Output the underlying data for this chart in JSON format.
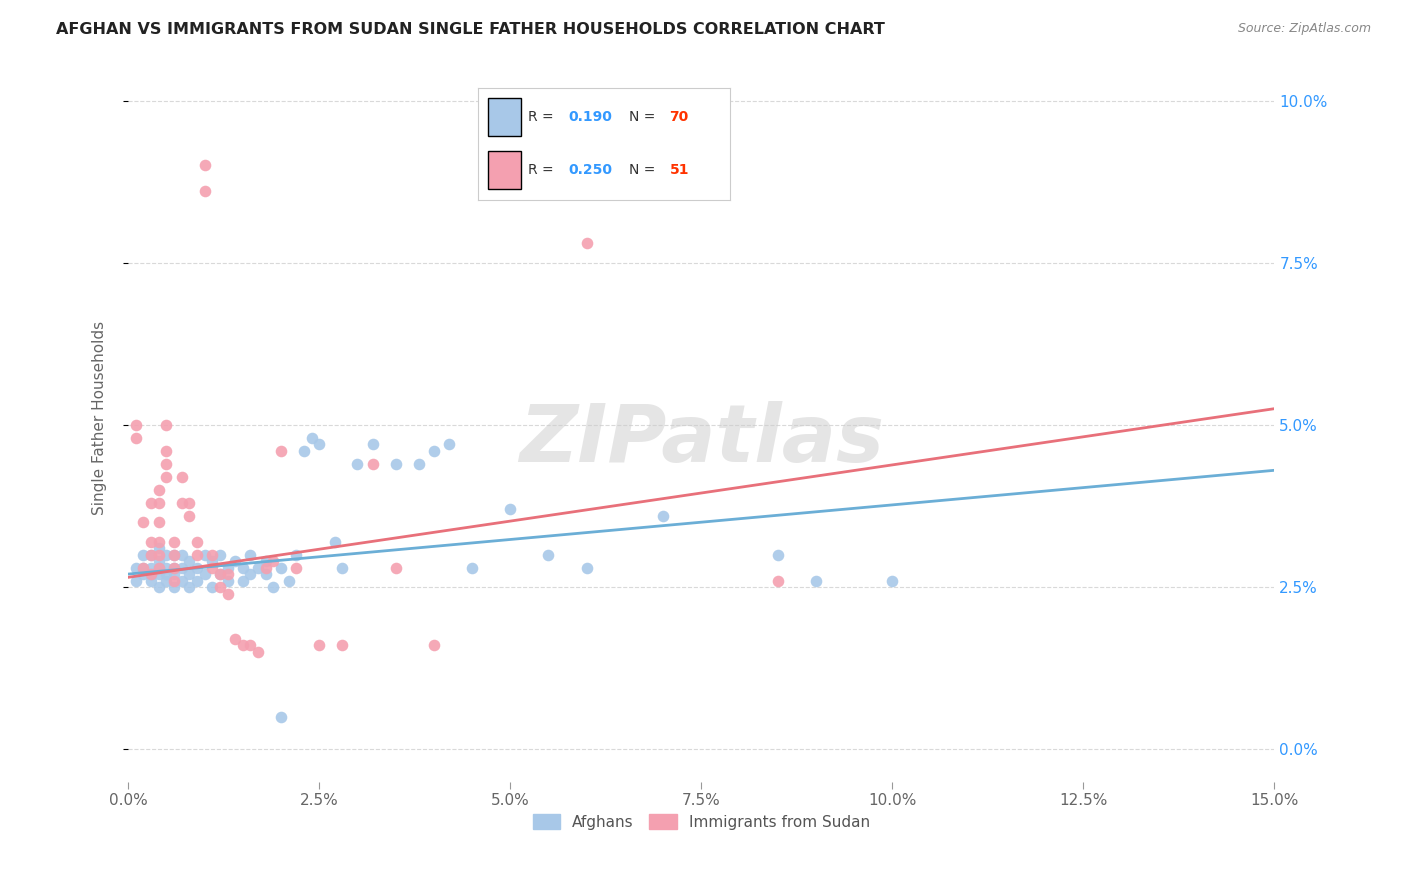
{
  "title": "AFGHAN VS IMMIGRANTS FROM SUDAN SINGLE FATHER HOUSEHOLDS CORRELATION CHART",
  "source": "Source: ZipAtlas.com",
  "ylabel": "Single Father Households",
  "xlim": [
    0.0,
    0.15
  ],
  "ylim": [
    -0.005,
    0.107
  ],
  "background_color": "#ffffff",
  "grid_color": "#d9d9d9",
  "watermark_text": "ZIPatlas",
  "legend_labels": [
    "Afghans",
    "Immigrants from Sudan"
  ],
  "blue_color": "#a8c8e8",
  "pink_color": "#f4a0b0",
  "blue_line_color": "#6baed6",
  "pink_line_color": "#e8707a",
  "r_value_color": "#3399ff",
  "n_value_color": "#ff3300",
  "blue_line_x": [
    0.0,
    0.15
  ],
  "blue_line_y": [
    0.027,
    0.043
  ],
  "pink_line_x": [
    0.0,
    0.15
  ],
  "pink_line_y": [
    0.0265,
    0.0525
  ],
  "blue_scatter": [
    [
      0.001,
      0.028
    ],
    [
      0.001,
      0.026
    ],
    [
      0.002,
      0.027
    ],
    [
      0.002,
      0.028
    ],
    [
      0.002,
      0.03
    ],
    [
      0.003,
      0.026
    ],
    [
      0.003,
      0.027
    ],
    [
      0.003,
      0.028
    ],
    [
      0.003,
      0.03
    ],
    [
      0.004,
      0.025
    ],
    [
      0.004,
      0.027
    ],
    [
      0.004,
      0.028
    ],
    [
      0.004,
      0.029
    ],
    [
      0.004,
      0.031
    ],
    [
      0.005,
      0.026
    ],
    [
      0.005,
      0.027
    ],
    [
      0.005,
      0.028
    ],
    [
      0.005,
      0.03
    ],
    [
      0.006,
      0.025
    ],
    [
      0.006,
      0.027
    ],
    [
      0.006,
      0.028
    ],
    [
      0.006,
      0.03
    ],
    [
      0.007,
      0.026
    ],
    [
      0.007,
      0.028
    ],
    [
      0.007,
      0.03
    ],
    [
      0.008,
      0.025
    ],
    [
      0.008,
      0.027
    ],
    [
      0.008,
      0.029
    ],
    [
      0.009,
      0.026
    ],
    [
      0.009,
      0.028
    ],
    [
      0.01,
      0.027
    ],
    [
      0.01,
      0.03
    ],
    [
      0.011,
      0.025
    ],
    [
      0.011,
      0.029
    ],
    [
      0.012,
      0.027
    ],
    [
      0.012,
      0.03
    ],
    [
      0.013,
      0.026
    ],
    [
      0.013,
      0.028
    ],
    [
      0.014,
      0.029
    ],
    [
      0.015,
      0.026
    ],
    [
      0.015,
      0.028
    ],
    [
      0.016,
      0.027
    ],
    [
      0.016,
      0.03
    ],
    [
      0.017,
      0.028
    ],
    [
      0.018,
      0.027
    ],
    [
      0.018,
      0.029
    ],
    [
      0.019,
      0.025
    ],
    [
      0.02,
      0.028
    ],
    [
      0.021,
      0.026
    ],
    [
      0.022,
      0.03
    ],
    [
      0.023,
      0.046
    ],
    [
      0.024,
      0.048
    ],
    [
      0.025,
      0.047
    ],
    [
      0.027,
      0.032
    ],
    [
      0.028,
      0.028
    ],
    [
      0.03,
      0.044
    ],
    [
      0.032,
      0.047
    ],
    [
      0.035,
      0.044
    ],
    [
      0.038,
      0.044
    ],
    [
      0.04,
      0.046
    ],
    [
      0.042,
      0.047
    ],
    [
      0.045,
      0.028
    ],
    [
      0.05,
      0.037
    ],
    [
      0.055,
      0.03
    ],
    [
      0.06,
      0.028
    ],
    [
      0.07,
      0.036
    ],
    [
      0.085,
      0.03
    ],
    [
      0.09,
      0.026
    ],
    [
      0.1,
      0.026
    ],
    [
      0.02,
      0.005
    ]
  ],
  "pink_scatter": [
    [
      0.001,
      0.048
    ],
    [
      0.001,
      0.05
    ],
    [
      0.002,
      0.028
    ],
    [
      0.002,
      0.035
    ],
    [
      0.003,
      0.027
    ],
    [
      0.003,
      0.03
    ],
    [
      0.003,
      0.032
    ],
    [
      0.003,
      0.038
    ],
    [
      0.004,
      0.028
    ],
    [
      0.004,
      0.03
    ],
    [
      0.004,
      0.032
    ],
    [
      0.004,
      0.035
    ],
    [
      0.004,
      0.038
    ],
    [
      0.004,
      0.04
    ],
    [
      0.005,
      0.042
    ],
    [
      0.005,
      0.044
    ],
    [
      0.005,
      0.046
    ],
    [
      0.005,
      0.05
    ],
    [
      0.006,
      0.026
    ],
    [
      0.006,
      0.028
    ],
    [
      0.006,
      0.03
    ],
    [
      0.006,
      0.032
    ],
    [
      0.007,
      0.038
    ],
    [
      0.007,
      0.042
    ],
    [
      0.008,
      0.036
    ],
    [
      0.008,
      0.038
    ],
    [
      0.009,
      0.03
    ],
    [
      0.009,
      0.032
    ],
    [
      0.01,
      0.086
    ],
    [
      0.01,
      0.09
    ],
    [
      0.011,
      0.028
    ],
    [
      0.011,
      0.03
    ],
    [
      0.012,
      0.025
    ],
    [
      0.012,
      0.027
    ],
    [
      0.013,
      0.027
    ],
    [
      0.013,
      0.024
    ],
    [
      0.014,
      0.017
    ],
    [
      0.015,
      0.016
    ],
    [
      0.016,
      0.016
    ],
    [
      0.017,
      0.015
    ],
    [
      0.018,
      0.028
    ],
    [
      0.019,
      0.029
    ],
    [
      0.02,
      0.046
    ],
    [
      0.022,
      0.028
    ],
    [
      0.025,
      0.016
    ],
    [
      0.028,
      0.016
    ],
    [
      0.032,
      0.044
    ],
    [
      0.035,
      0.028
    ],
    [
      0.04,
      0.016
    ],
    [
      0.06,
      0.078
    ],
    [
      0.085,
      0.026
    ]
  ],
  "x_ticks": [
    0.0,
    0.025,
    0.05,
    0.075,
    0.1,
    0.125,
    0.15
  ],
  "x_tick_labels": [
    "0.0%",
    "2.5%",
    "5.0%",
    "7.5%",
    "10.0%",
    "12.5%",
    "15.0%"
  ],
  "y_ticks": [
    0.0,
    0.025,
    0.05,
    0.075,
    0.1
  ],
  "y_tick_labels": [
    "0.0%",
    "2.5%",
    "5.0%",
    "7.5%",
    "10.0%"
  ]
}
